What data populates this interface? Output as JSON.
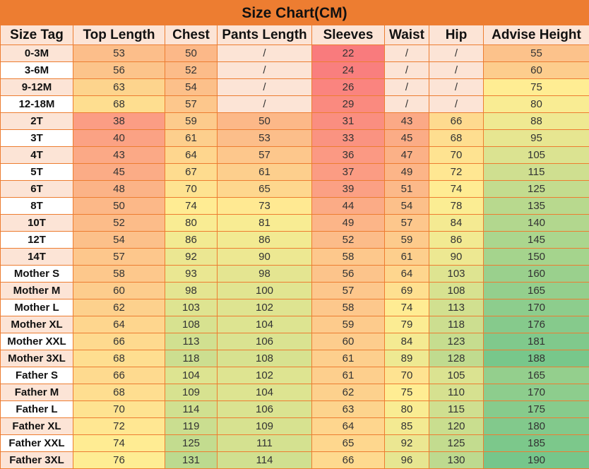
{
  "title": "Size Chart(CM)",
  "colors": {
    "title_bg": "#ed7d31",
    "border": "#ed7d31",
    "header_bg": "#fce4d6",
    "tag_alt_bg": "#fce4d6",
    "tag_bg": "#ffffff",
    "empty_bg": "#fce4d6",
    "scale_low": "#f8696b",
    "scale_mid": "#ffeb84",
    "scale_high": "#63be7b"
  },
  "columns": [
    "Size Tag",
    "Top Length",
    "Chest",
    "Pants Length",
    "Sleeves",
    "Waist",
    "Hip",
    "Advise Height"
  ],
  "rows": [
    [
      "0-3M",
      "53",
      "50",
      "/",
      "22",
      "/",
      "/",
      "55"
    ],
    [
      "3-6M",
      "56",
      "52",
      "/",
      "24",
      "/",
      "/",
      "60"
    ],
    [
      "9-12M",
      "63",
      "54",
      "/",
      "26",
      "/",
      "/",
      "75"
    ],
    [
      "12-18M",
      "68",
      "57",
      "/",
      "29",
      "/",
      "/",
      "80"
    ],
    [
      "2T",
      "38",
      "59",
      "50",
      "31",
      "43",
      "66",
      "88"
    ],
    [
      "3T",
      "40",
      "61",
      "53",
      "33",
      "45",
      "68",
      "95"
    ],
    [
      "4T",
      "43",
      "64",
      "57",
      "36",
      "47",
      "70",
      "105"
    ],
    [
      "5T",
      "45",
      "67",
      "61",
      "37",
      "49",
      "72",
      "115"
    ],
    [
      "6T",
      "48",
      "70",
      "65",
      "39",
      "51",
      "74",
      "125"
    ],
    [
      "8T",
      "50",
      "74",
      "73",
      "44",
      "54",
      "78",
      "135"
    ],
    [
      "10T",
      "52",
      "80",
      "81",
      "49",
      "57",
      "84",
      "140"
    ],
    [
      "12T",
      "54",
      "86",
      "86",
      "52",
      "59",
      "86",
      "145"
    ],
    [
      "14T",
      "57",
      "92",
      "90",
      "58",
      "61",
      "90",
      "150"
    ],
    [
      "Mother S",
      "58",
      "93",
      "98",
      "56",
      "64",
      "103",
      "160"
    ],
    [
      "Mother M",
      "60",
      "98",
      "100",
      "57",
      "69",
      "108",
      "165"
    ],
    [
      "Mother L",
      "62",
      "103",
      "102",
      "58",
      "74",
      "113",
      "170"
    ],
    [
      "Mother XL",
      "64",
      "108",
      "104",
      "59",
      "79",
      "118",
      "176"
    ],
    [
      "Mother XXL",
      "66",
      "113",
      "106",
      "60",
      "84",
      "123",
      "181"
    ],
    [
      "Mother 3XL",
      "68",
      "118",
      "108",
      "61",
      "89",
      "128",
      "188"
    ],
    [
      "Father S",
      "66",
      "104",
      "102",
      "61",
      "70",
      "105",
      "165"
    ],
    [
      "Father M",
      "68",
      "109",
      "104",
      "62",
      "75",
      "110",
      "170"
    ],
    [
      "Father L",
      "70",
      "114",
      "106",
      "63",
      "80",
      "115",
      "175"
    ],
    [
      "Father XL",
      "72",
      "119",
      "109",
      "64",
      "85",
      "120",
      "180"
    ],
    [
      "Father XXL",
      "74",
      "125",
      "111",
      "65",
      "92",
      "125",
      "185"
    ],
    [
      "Father 3XL",
      "76",
      "131",
      "114",
      "66",
      "96",
      "130",
      "190"
    ]
  ]
}
